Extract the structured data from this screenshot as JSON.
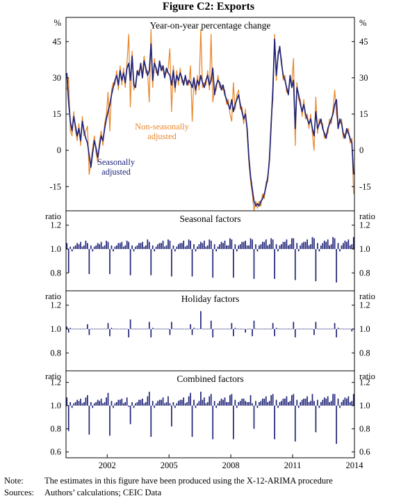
{
  "title": "Figure C2: Exports",
  "colors": {
    "nsa": "#E8892E",
    "sa": "#1F2377",
    "axis": "#000000",
    "bar": "#1F2377"
  },
  "annotations": {
    "nsa_label": [
      "Non-seasonally",
      "adjusted"
    ],
    "sa_label": [
      "Seasonally",
      "adjusted"
    ]
  },
  "notes": {
    "note_label": "Note:",
    "note_text": "The estimates in this figure have been produced using the X-12-ARIMA procedure",
    "sources_label": "Sources:",
    "sources_text": "Authors’ calculations; CEIC Data"
  },
  "x_axis": {
    "start_year": 2000,
    "end_year": 2014,
    "tick_years": [
      2002,
      2005,
      2008,
      2011,
      2014
    ]
  },
  "chart_data": [
    {
      "type": "line",
      "title": "Year-on-year percentage change",
      "unit": "%",
      "ylim": [
        -25,
        55
      ],
      "yticks": [
        -15,
        0,
        15,
        30,
        45
      ],
      "ytick_labels": [
        "-15",
        "0",
        "15",
        "30",
        "45"
      ],
      "x_start": 2000,
      "x_step_months": 1,
      "series": [
        {
          "name": "Non-seasonally adjusted",
          "color": "#E8892E",
          "values": [
            25,
            30,
            8,
            6,
            16,
            8,
            4,
            11,
            2,
            14,
            6,
            8,
            10,
            -10,
            -5,
            1,
            6,
            -1,
            -5,
            4,
            8,
            2,
            11,
            15,
            24,
            8,
            25,
            28,
            27,
            33,
            25,
            35,
            27,
            34,
            26,
            36,
            48,
            18,
            41,
            25,
            28,
            31,
            33,
            34,
            32,
            39,
            32,
            33,
            20,
            50,
            26,
            38,
            32,
            33,
            35,
            35,
            33,
            32,
            32,
            34,
            42,
            16,
            35,
            24,
            33,
            27,
            34,
            28,
            29,
            29,
            29,
            27,
            35,
            12,
            30,
            23,
            31,
            25,
            50,
            26,
            28,
            27,
            33,
            25,
            48,
            20,
            25,
            25,
            31,
            26,
            27,
            25,
            25,
            19,
            21,
            15,
            12,
            28,
            17,
            23,
            25,
            17,
            18,
            11,
            17,
            7,
            -5,
            -13,
            -18,
            -25,
            -21,
            -24,
            -21,
            -23,
            -18,
            -20,
            -13,
            -13,
            -2,
            13,
            21,
            48,
            29,
            41,
            41,
            38,
            29,
            31,
            24,
            25,
            29,
            28,
            38,
            2,
            28,
            21,
            21,
            14,
            21,
            13,
            15,
            9,
            15,
            7,
            0,
            22,
            7,
            13,
            11,
            11,
            5,
            7,
            7,
            13,
            11,
            17,
            25,
            15,
            11,
            11,
            13,
            5,
            7,
            7,
            9,
            3,
            5,
            -18
          ]
        },
        {
          "name": "Seasonally adjusted",
          "color": "#1F2377",
          "values": [
            32,
            20,
            12,
            8,
            14,
            10,
            6,
            9,
            4,
            12,
            8,
            5,
            3,
            -2,
            -7,
            -1,
            4,
            1,
            -3,
            2,
            6,
            4,
            9,
            13,
            16,
            19,
            23,
            26,
            29,
            31,
            27,
            33,
            29,
            32,
            28,
            34,
            36,
            29,
            39,
            27,
            26,
            33,
            31,
            36,
            30,
            37,
            34,
            31,
            33,
            44,
            29,
            36,
            34,
            31,
            37,
            33,
            35,
            30,
            34,
            32,
            31,
            27,
            33,
            26,
            31,
            29,
            32,
            30,
            27,
            31,
            27,
            29,
            28,
            26,
            30,
            25,
            29,
            27,
            31,
            28,
            26,
            29,
            31,
            27,
            29,
            34,
            23,
            27,
            29,
            28,
            25,
            27,
            23,
            21,
            19,
            17,
            21,
            16,
            19,
            21,
            23,
            19,
            16,
            13,
            15,
            9,
            -3,
            -11,
            -16,
            -21,
            -23,
            -22,
            -23,
            -21,
            -20,
            -18,
            -15,
            -11,
            -4,
            11,
            26,
            46,
            31,
            39,
            43,
            36,
            31,
            29,
            26,
            23,
            31,
            26,
            29,
            9,
            26,
            23,
            19,
            16,
            19,
            15,
            13,
            11,
            13,
            9,
            6,
            16,
            9,
            11,
            13,
            9,
            7,
            5,
            9,
            11,
            13,
            15,
            19,
            21,
            9,
            13,
            11,
            7,
            5,
            9,
            7,
            5,
            3,
            -10
          ]
        }
      ]
    },
    {
      "type": "bar",
      "title": "Seasonal factors",
      "unit": "ratio",
      "ylim": [
        0.65,
        1.32
      ],
      "yticks": [
        0.8,
        1.0,
        1.2
      ],
      "ytick_labels": [
        "0.8",
        "1.0",
        "1.2"
      ],
      "baseline": 1.0,
      "values": [
        1.05,
        0.8,
        1.02,
        0.98,
        1.02,
        1.03,
        1.05,
        1.04,
        1.06,
        1.02,
        1.03,
        1.07,
        1.05,
        0.79,
        1.03,
        0.98,
        1.02,
        1.03,
        1.05,
        1.04,
        1.06,
        1.02,
        1.03,
        1.07,
        1.06,
        0.79,
        1.03,
        0.98,
        1.02,
        1.03,
        1.05,
        1.05,
        1.06,
        1.02,
        1.03,
        1.07,
        1.06,
        0.78,
        1.03,
        0.98,
        1.02,
        1.03,
        1.05,
        1.05,
        1.06,
        1.02,
        1.03,
        1.08,
        1.06,
        0.78,
        1.03,
        0.98,
        1.02,
        1.04,
        1.05,
        1.05,
        1.07,
        1.02,
        1.03,
        1.08,
        1.07,
        0.77,
        1.03,
        0.98,
        1.02,
        1.04,
        1.05,
        1.05,
        1.07,
        1.02,
        1.03,
        1.08,
        1.07,
        0.77,
        1.04,
        0.98,
        1.02,
        1.04,
        1.06,
        1.05,
        1.07,
        1.02,
        1.03,
        1.08,
        1.07,
        0.76,
        1.04,
        0.98,
        1.02,
        1.04,
        1.06,
        1.05,
        1.07,
        1.03,
        1.03,
        1.09,
        1.08,
        0.76,
        1.04,
        0.98,
        1.03,
        1.04,
        1.06,
        1.06,
        1.07,
        1.03,
        1.03,
        1.09,
        1.08,
        0.75,
        1.04,
        0.98,
        1.03,
        1.04,
        1.06,
        1.06,
        1.08,
        1.03,
        1.04,
        1.09,
        1.08,
        0.75,
        1.04,
        0.98,
        1.03,
        1.04,
        1.06,
        1.06,
        1.08,
        1.03,
        1.04,
        1.09,
        1.09,
        0.74,
        1.05,
        0.98,
        1.03,
        1.05,
        1.06,
        1.06,
        1.08,
        1.03,
        1.04,
        1.1,
        1.09,
        0.73,
        1.05,
        0.98,
        1.03,
        1.05,
        1.07,
        1.06,
        1.08,
        1.03,
        1.04,
        1.1,
        1.09,
        0.72,
        1.05,
        0.98,
        1.03,
        1.05,
        1.07,
        1.06,
        1.08,
        1.03,
        1.04,
        1.1
      ]
    },
    {
      "type": "bar",
      "title": "Holiday factors",
      "unit": "ratio",
      "ylim": [
        0.65,
        1.32
      ],
      "yticks": [
        0.8,
        1.0,
        1.2
      ],
      "ytick_labels": [
        "0.8",
        "1.0",
        "1.2"
      ],
      "baseline": 1.0,
      "values": [
        1.02,
        0.97,
        1.01,
        1.0,
        1.0,
        1.0,
        1.0,
        1.0,
        1.0,
        1.0,
        1.0,
        1.0,
        1.04,
        0.95,
        1.0,
        1.0,
        1.0,
        1.0,
        1.0,
        1.0,
        1.0,
        1.0,
        1.0,
        1.0,
        1.05,
        0.94,
        1.01,
        1.0,
        1.0,
        1.0,
        1.0,
        1.0,
        1.0,
        1.0,
        1.0,
        1.0,
        0.93,
        1.08,
        1.0,
        1.0,
        1.0,
        1.0,
        1.0,
        1.0,
        1.0,
        1.0,
        1.0,
        1.0,
        1.06,
        0.93,
        1.01,
        1.0,
        1.0,
        1.0,
        1.0,
        1.0,
        1.0,
        1.0,
        1.0,
        1.0,
        0.95,
        1.06,
        1.0,
        1.0,
        1.0,
        1.0,
        1.0,
        1.0,
        1.0,
        1.0,
        1.0,
        1.0,
        1.04,
        0.95,
        1.01,
        1.0,
        1.0,
        1.0,
        1.15,
        1.0,
        1.0,
        1.0,
        1.0,
        1.0,
        1.07,
        0.93,
        1.0,
        1.0,
        1.0,
        1.0,
        1.0,
        1.0,
        1.0,
        1.0,
        1.0,
        1.0,
        1.05,
        0.94,
        1.01,
        1.0,
        1.0,
        1.0,
        1.0,
        1.0,
        0.97,
        1.0,
        1.0,
        1.0,
        0.94,
        1.07,
        1.0,
        1.0,
        1.0,
        1.0,
        1.0,
        1.0,
        1.0,
        1.0,
        1.0,
        1.0,
        1.05,
        0.94,
        1.01,
        1.0,
        1.0,
        1.0,
        1.0,
        1.0,
        1.0,
        1.0,
        1.0,
        1.0,
        1.06,
        0.93,
        1.0,
        1.0,
        1.0,
        1.0,
        1.0,
        1.0,
        1.0,
        1.0,
        1.0,
        1.0,
        0.95,
        1.06,
        1.0,
        1.0,
        1.0,
        1.0,
        1.0,
        1.0,
        1.0,
        1.0,
        1.0,
        1.0,
        1.05,
        0.93,
        1.01,
        1.0,
        1.0,
        1.0,
        1.0,
        1.0,
        1.0,
        1.0,
        0.98,
        1.0
      ]
    },
    {
      "type": "bar",
      "title": "Combined factors",
      "unit": "ratio",
      "ylim": [
        0.55,
        1.3
      ],
      "yticks": [
        0.6,
        0.8,
        1.0,
        1.2
      ],
      "ytick_labels": [
        "0.6",
        "0.8",
        "1.0",
        "1.2"
      ],
      "baseline": 1.0,
      "values": [
        1.07,
        0.78,
        1.03,
        0.98,
        1.02,
        1.03,
        1.05,
        1.04,
        1.06,
        1.02,
        1.03,
        1.07,
        1.09,
        0.75,
        1.03,
        0.98,
        1.02,
        1.03,
        1.05,
        1.04,
        1.06,
        1.02,
        1.03,
        1.07,
        1.11,
        0.74,
        1.04,
        0.98,
        1.02,
        1.03,
        1.05,
        1.05,
        1.06,
        1.02,
        1.03,
        1.07,
        0.99,
        0.84,
        1.03,
        0.98,
        1.02,
        1.03,
        1.05,
        1.05,
        1.06,
        1.02,
        1.03,
        1.08,
        1.12,
        0.73,
        1.04,
        0.98,
        1.02,
        1.04,
        1.05,
        1.05,
        1.07,
        1.02,
        1.03,
        1.08,
        1.02,
        0.82,
        1.03,
        0.98,
        1.02,
        1.04,
        1.05,
        1.05,
        1.07,
        1.02,
        1.03,
        1.08,
        1.11,
        0.73,
        1.05,
        0.98,
        1.02,
        1.04,
        1.12,
        1.05,
        1.07,
        1.02,
        1.03,
        1.08,
        1.1,
        0.71,
        1.04,
        0.98,
        1.02,
        1.04,
        1.06,
        1.05,
        1.07,
        1.03,
        1.03,
        1.09,
        1.1,
        0.71,
        1.05,
        0.98,
        1.03,
        1.04,
        1.06,
        1.06,
        1.04,
        1.03,
        1.03,
        1.09,
        1.02,
        0.8,
        1.04,
        0.98,
        1.03,
        1.04,
        1.06,
        1.06,
        1.08,
        1.03,
        1.04,
        1.09,
        1.1,
        0.71,
        1.05,
        0.98,
        1.03,
        1.04,
        1.06,
        1.06,
        1.08,
        1.03,
        1.04,
        1.09,
        1.1,
        0.69,
        1.05,
        0.98,
        1.03,
        1.05,
        1.06,
        1.06,
        1.08,
        1.03,
        1.04,
        1.1,
        1.04,
        0.77,
        1.05,
        0.98,
        1.03,
        1.05,
        1.07,
        1.06,
        1.08,
        1.03,
        1.04,
        1.1,
        1.1,
        0.67,
        1.06,
        0.98,
        1.03,
        1.05,
        1.07,
        1.06,
        1.08,
        1.03,
        1.04,
        1.1
      ]
    }
  ]
}
